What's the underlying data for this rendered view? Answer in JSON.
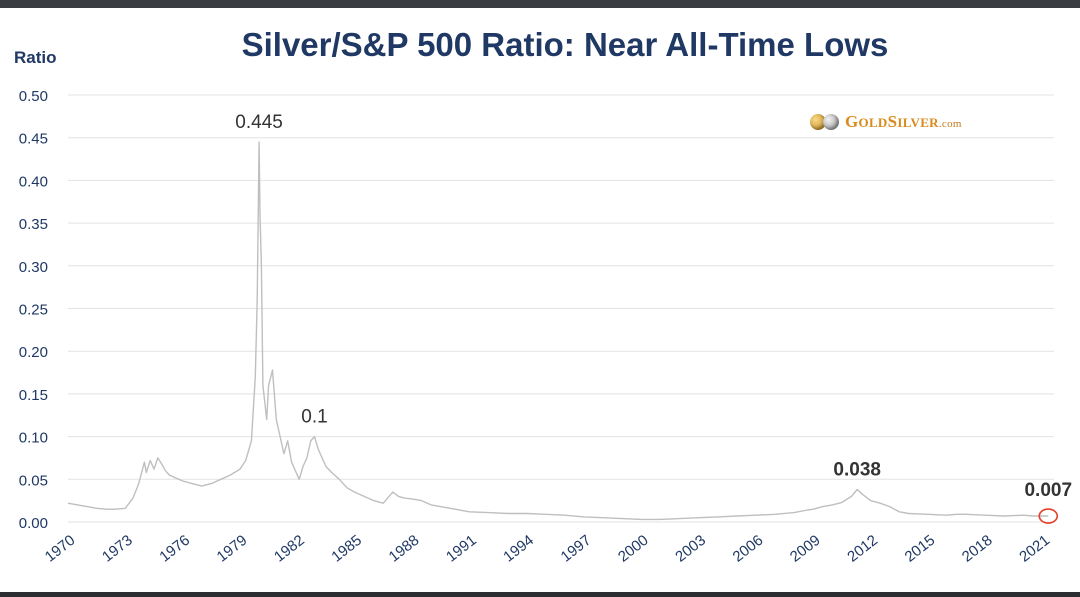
{
  "logo": {
    "brand_g": "G",
    "brand_old": "OLD",
    "brand_s": "S",
    "brand_ilver": "ILVER",
    "brand_domain": ".com"
  },
  "chart_data": {
    "type": "line",
    "title": "Silver/S&P 500 Ratio: Near All-Time Lows",
    "ylabel": "Ratio",
    "xlabel": "",
    "xlim": [
      1970,
      2021.6
    ],
    "ylim": [
      0,
      0.5
    ],
    "yticks": [
      "0.00",
      "0.05",
      "0.10",
      "0.15",
      "0.20",
      "0.25",
      "0.30",
      "0.35",
      "0.40",
      "0.45",
      "0.50"
    ],
    "xticks": [
      "1970",
      "1973",
      "1976",
      "1979",
      "1982",
      "1985",
      "1988",
      "1991",
      "1994",
      "1997",
      "2000",
      "2003",
      "2006",
      "2009",
      "2012",
      "2015",
      "2018",
      "2021"
    ],
    "grid": true,
    "line_color": "#bfbfbf",
    "annotation_color": "#333333",
    "highlight_color": "#e0402a",
    "series": [
      {
        "x": [
          1970.0,
          1970.5,
          1971.0,
          1971.5,
          1972.0,
          1972.5,
          1973.0,
          1973.4,
          1973.7,
          1974.0,
          1974.1,
          1974.3,
          1974.5,
          1974.7,
          1974.9,
          1975.1,
          1975.3,
          1975.6,
          1976.0,
          1976.5,
          1977.0,
          1977.5,
          1978.0,
          1978.5,
          1979.0,
          1979.3,
          1979.6,
          1979.8,
          1979.9,
          1980.0,
          1980.05,
          1980.12,
          1980.2,
          1980.3,
          1980.4,
          1980.5,
          1980.7,
          1980.9,
          1981.1,
          1981.3,
          1981.5,
          1981.7,
          1981.9,
          1982.1,
          1982.3,
          1982.5,
          1982.7,
          1982.9,
          1983.1,
          1983.3,
          1983.5,
          1983.8,
          1984.2,
          1984.6,
          1985.0,
          1985.5,
          1986.0,
          1986.5,
          1987.0,
          1987.3,
          1987.6,
          1988.0,
          1988.5,
          1989.0,
          1990.0,
          1991.0,
          1992.0,
          1993.0,
          1994.0,
          1995.0,
          1996.0,
          1997.0,
          1998.0,
          1999.0,
          2000.0,
          2001.0,
          2002.0,
          2003.0,
          2004.0,
          2005.0,
          2006.0,
          2007.0,
          2008.0,
          2008.7,
          2009.0,
          2009.5,
          2010.0,
          2010.5,
          2011.0,
          2011.3,
          2011.6,
          2012.0,
          2012.5,
          2013.0,
          2013.5,
          2014.0,
          2015.0,
          2016.0,
          2016.5,
          2017.0,
          2018.0,
          2019.0,
          2020.0,
          2020.5,
          2021.0,
          2021.3
        ],
        "y": [
          0.022,
          0.02,
          0.018,
          0.016,
          0.015,
          0.015,
          0.016,
          0.028,
          0.045,
          0.07,
          0.058,
          0.072,
          0.062,
          0.075,
          0.068,
          0.06,
          0.055,
          0.052,
          0.048,
          0.045,
          0.042,
          0.045,
          0.05,
          0.055,
          0.062,
          0.072,
          0.095,
          0.17,
          0.26,
          0.445,
          0.36,
          0.3,
          0.16,
          0.14,
          0.12,
          0.16,
          0.178,
          0.12,
          0.1,
          0.08,
          0.095,
          0.07,
          0.06,
          0.05,
          0.065,
          0.075,
          0.095,
          0.1,
          0.085,
          0.075,
          0.065,
          0.058,
          0.05,
          0.04,
          0.035,
          0.03,
          0.025,
          0.022,
          0.035,
          0.03,
          0.028,
          0.027,
          0.025,
          0.02,
          0.016,
          0.012,
          0.011,
          0.01,
          0.01,
          0.009,
          0.008,
          0.006,
          0.005,
          0.004,
          0.003,
          0.003,
          0.004,
          0.005,
          0.006,
          0.007,
          0.008,
          0.009,
          0.011,
          0.014,
          0.015,
          0.018,
          0.02,
          0.023,
          0.03,
          0.038,
          0.032,
          0.025,
          0.022,
          0.018,
          0.012,
          0.01,
          0.009,
          0.008,
          0.009,
          0.009,
          0.008,
          0.007,
          0.008,
          0.007,
          0.007,
          0.007
        ]
      }
    ],
    "annotations": [
      {
        "text": "0.445",
        "x": 1980.0,
        "y": 0.445,
        "bold": false
      },
      {
        "text": "0.1",
        "x": 1982.9,
        "y": 0.1,
        "bold": false
      },
      {
        "text": "0.038",
        "x": 2011.3,
        "y": 0.038,
        "bold": true
      },
      {
        "text": "0.007",
        "x": 2021.3,
        "y": 0.007,
        "bold": true
      }
    ],
    "highlight_point": {
      "x": 2021.3,
      "y": 0.007
    }
  }
}
